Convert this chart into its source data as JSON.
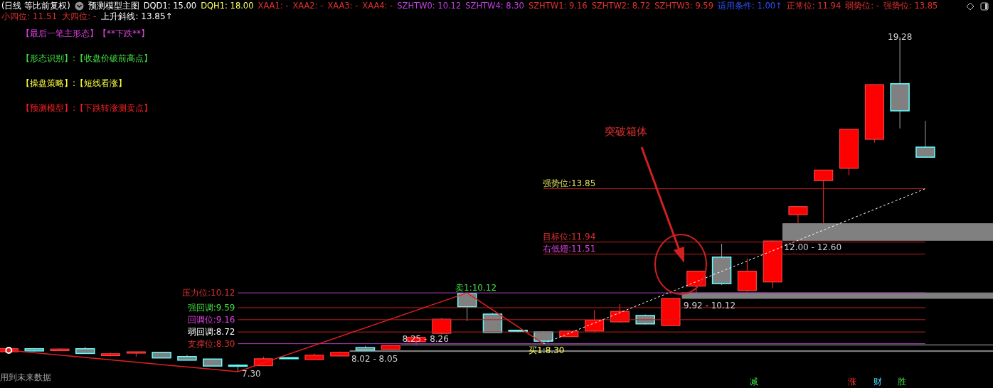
{
  "chart_data": {
    "type": "candlestick",
    "categories": [
      null,
      null,
      null,
      null,
      null,
      null,
      null,
      null,
      null,
      null,
      null,
      null,
      null,
      null,
      null,
      null,
      null,
      null,
      null,
      null,
      null,
      null,
      null,
      null,
      null,
      null,
      null,
      null,
      null,
      null,
      null,
      null,
      null,
      null,
      null,
      null,
      null
    ],
    "ohlc": [
      [
        8.01,
        8.13,
        8.0,
        8.12
      ],
      [
        8.12,
        8.14,
        8.02,
        8.04
      ],
      [
        8.05,
        8.13,
        8.05,
        8.11
      ],
      [
        8.12,
        8.19,
        7.95,
        7.95
      ],
      [
        7.87,
        7.98,
        7.85,
        7.94
      ],
      [
        7.96,
        8.02,
        7.83,
        8.01
      ],
      [
        7.99,
        8.0,
        7.78,
        7.79
      ],
      [
        7.84,
        7.9,
        7.7,
        7.71
      ],
      [
        7.75,
        7.76,
        7.48,
        7.5
      ],
      [
        7.53,
        7.56,
        7.3,
        7.52
      ],
      [
        7.51,
        7.84,
        7.5,
        7.76
      ],
      [
        7.8,
        7.82,
        7.77,
        7.79
      ],
      [
        7.73,
        7.95,
        7.73,
        7.89
      ],
      [
        7.86,
        8.02,
        7.85,
        7.99
      ],
      [
        8.16,
        8.22,
        8.05,
        8.07
      ],
      [
        8.1,
        8.25,
        8.08,
        8.24
      ],
      [
        8.37,
        8.58,
        8.26,
        8.53
      ],
      [
        8.67,
        9.22,
        8.61,
        9.18
      ],
      [
        10.1,
        10.12,
        9.11,
        9.62
      ],
      [
        9.36,
        9.4,
        8.7,
        8.7
      ],
      [
        8.78,
        8.8,
        8.7,
        8.76
      ],
      [
        8.72,
        8.74,
        8.3,
        8.39
      ],
      [
        8.55,
        8.78,
        8.54,
        8.75
      ],
      [
        8.75,
        9.5,
        8.7,
        9.14
      ],
      [
        9.08,
        9.72,
        9.05,
        9.46
      ],
      [
        9.31,
        9.35,
        8.99,
        9.01
      ],
      [
        8.95,
        9.92,
        8.93,
        9.92
      ],
      [
        10.36,
        10.9,
        10.12,
        10.9
      ],
      [
        11.4,
        11.88,
        10.4,
        10.45
      ],
      [
        10.2,
        11.35,
        10.16,
        10.9
      ],
      [
        10.51,
        12.0,
        10.28,
        11.98
      ],
      [
        12.92,
        13.21,
        12.6,
        13.21
      ],
      [
        14.14,
        14.52,
        12.62,
        14.52
      ],
      [
        14.58,
        15.98,
        14.33,
        15.98
      ],
      [
        15.62,
        17.58,
        15.5,
        17.58
      ],
      [
        17.61,
        19.28,
        16.01,
        16.64
      ],
      [
        15.34,
        16.28,
        14.98,
        14.98
      ]
    ],
    "series": [
      {
        "type": "line",
        "color": "#e02020",
        "values": [
          8.06,
          null,
          null,
          null,
          null,
          null,
          null,
          null,
          null,
          7.3,
          null,
          null,
          null,
          null,
          null,
          null,
          null,
          null,
          10.12,
          null,
          null,
          8.3,
          null,
          null,
          null,
          null,
          null,
          null,
          null,
          null,
          null,
          null,
          null,
          null,
          null,
          null,
          null
        ]
      },
      {
        "type": "line",
        "color": "#ffffff",
        "line_style": "dotted",
        "values": [
          null,
          null,
          null,
          null,
          null,
          null,
          null,
          null,
          null,
          null,
          null,
          null,
          null,
          null,
          null,
          null,
          null,
          null,
          null,
          null,
          null,
          8.3,
          null,
          null,
          null,
          null,
          null,
          null,
          null,
          null,
          null,
          null,
          null,
          null,
          null,
          null,
          13.85
        ]
      }
    ],
    "marker": "none",
    "ref_lines": [
      {
        "axis": "y",
        "value": 10.12,
        "label": "压力位:10.12",
        "color": "#b040c0"
      },
      {
        "axis": "y",
        "value": 9.59,
        "label": "强回调:9.59",
        "color": "#c02020"
      },
      {
        "axis": "y",
        "value": 9.16,
        "label": "回调位:9.16",
        "color": "#c02020"
      },
      {
        "axis": "y",
        "value": 8.72,
        "label": "弱回调:8.72",
        "color": "#c02020"
      },
      {
        "axis": "y",
        "value": 8.3,
        "label": "支撑位:8.30",
        "color": "#b040c0"
      },
      {
        "axis": "y",
        "value": 13.85,
        "label": "强势位:13.85",
        "color": "#c02020"
      },
      {
        "axis": "y",
        "value": 11.94,
        "label": "目标位:11.94",
        "color": "#c02020"
      },
      {
        "axis": "y",
        "value": 11.51,
        "label": "右低翅:11.51",
        "color": "#c02020"
      }
    ],
    "bands": [
      {
        "axis": "y",
        "from": 12.0,
        "to": 12.6,
        "label": "12.00 - 12.60",
        "color": "#808080"
      },
      {
        "axis": "y",
        "from": 9.92,
        "to": 10.12,
        "label": "9.92 - 10.12",
        "color": "#808080"
      },
      {
        "axis": "y",
        "from": 8.02,
        "to": 8.05,
        "label": "8.02 - 8.05",
        "color": "#808080"
      },
      {
        "axis": "y",
        "from": 8.25,
        "to": 8.26,
        "label": "8.25 - 8.26",
        "color": "#808080"
      }
    ],
    "annotations": [
      "(日线 等比前复权)",
      "预测模型主图",
      "DQD1: 15.00",
      "DQH1: 18.00",
      "XAA1: -",
      "XAA2: -",
      "XAA3: -",
      "XAA4: -",
      "SZHTW0: 10.12",
      "SZHTW4: 8.30",
      "SZHTW1: 9.16",
      "SZHTW2: 8.72",
      "SZHTW3: 9.59",
      "适用条件: 1.00↑",
      "正常位: 11.94",
      "弱势位: -",
      "强势位: 13.85",
      "小四位: 11.51",
      "大四位: -",
      "上升斜线: 13.85↑",
      "【最后一笔主形态】【**下跌**】",
      "【形态识别】:【收盘价破前高点】",
      "【操盘策略】:【短线看涨】",
      "【预测模型】:【下跌转涨测卖点】",
      {
        "text": "卖1:10.12",
        "y": 10.12
      },
      {
        "text": "买1:8.30",
        "y": 8.3
      },
      {
        "text": "19.28",
        "y": 19.28
      },
      "7.30",
      "突破箱体",
      "用到未来数据",
      "减",
      "涨",
      "财",
      "胜"
    ]
  }
}
